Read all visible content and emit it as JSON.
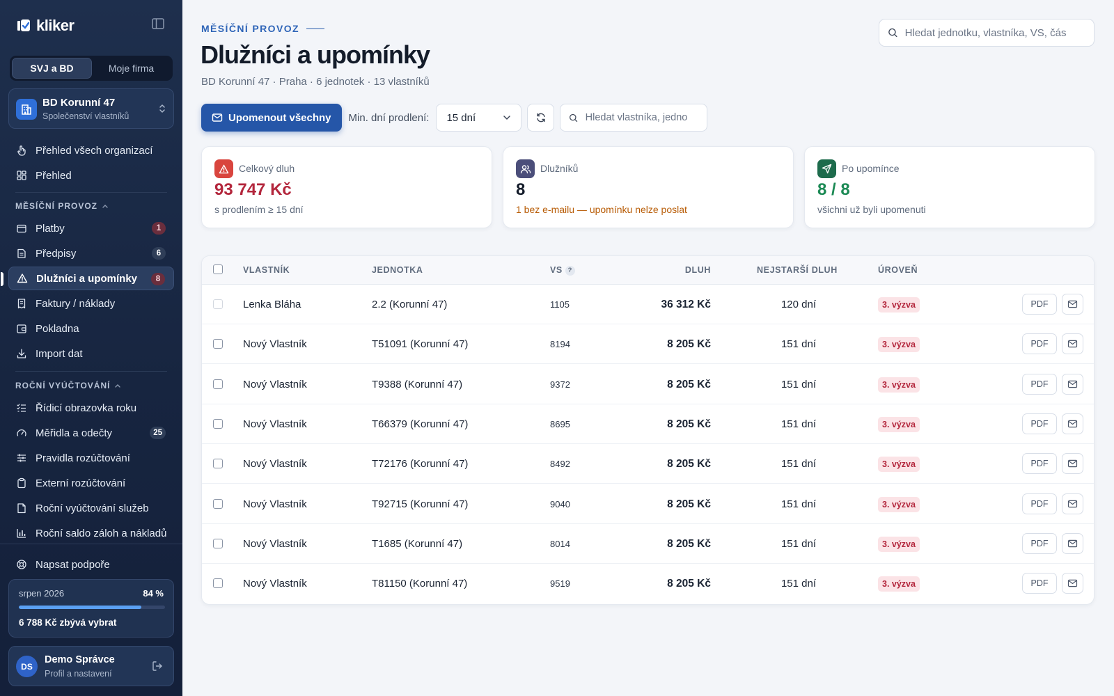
{
  "app": {
    "logo_text": "kliker"
  },
  "sidebar": {
    "segments": [
      {
        "label": "SVJ a BD",
        "active": true
      },
      {
        "label": "Moje firma",
        "active": false
      }
    ],
    "org": {
      "name": "BD Korunní 47",
      "type": "Společenství vlastníků"
    },
    "top_items": [
      {
        "label": "Přehled všech organizací",
        "icon": "hand-pointer-icon"
      },
      {
        "label": "Přehled",
        "icon": "dashboard-icon"
      }
    ],
    "section_monthly": "MĚSÍČNÍ PROVOZ",
    "monthly_items": [
      {
        "label": "Platby",
        "icon": "wallet-icon",
        "badge": "1",
        "badge_color": "#6a2e3d"
      },
      {
        "label": "Předpisy",
        "icon": "list-icon",
        "badge": "6"
      },
      {
        "label": "Dlužníci a upomínky",
        "icon": "warning-icon",
        "badge": "8",
        "active": true,
        "badge_color": "#6a2e3d"
      },
      {
        "label": "Faktury / náklady",
        "icon": "receipt-icon"
      },
      {
        "label": "Pokladna",
        "icon": "cashbox-icon"
      },
      {
        "label": "Import dat",
        "icon": "download-icon"
      }
    ],
    "section_annual": "ROČNÍ VYÚČTOVÁNÍ",
    "annual_items": [
      {
        "label": "Řídicí obrazovka roku",
        "icon": "checklist-icon"
      },
      {
        "label": "Měřidla a odečty",
        "icon": "gauge-icon",
        "badge": "25"
      },
      {
        "label": "Pravidla rozúčtování",
        "icon": "sliders-icon"
      },
      {
        "label": "Externí rozúčtování",
        "icon": "clipboard-icon"
      },
      {
        "label": "Roční vyúčtování služeb",
        "icon": "document-icon"
      },
      {
        "label": "Roční saldo záloh a nákladů",
        "icon": "bar-chart-icon"
      }
    ],
    "support": {
      "label": "Napsat podpoře",
      "icon": "lifebuoy-icon"
    },
    "budget": {
      "month": "srpen 2026",
      "percent_label": "84 %",
      "percent": 84,
      "remaining": "6 788 Kč zbývá vybrat"
    },
    "user": {
      "initials": "DS",
      "name": "Demo Správce",
      "sub": "Profil a nastavení"
    }
  },
  "header": {
    "eyebrow": "MĚSÍČNÍ PROVOZ",
    "title": "Dlužníci a upomínky",
    "subtitle": "BD Korunní 47 · Praha · 6 jednotek · 13 vlastníků",
    "search_placeholder": "Hledat jednotku, vlastníka, VS, čás"
  },
  "toolbar": {
    "remind_all": "Upomenout všechny",
    "min_days_label": "Min. dní prodlení:",
    "min_days_value": "15 dní",
    "search_placeholder": "Hledat vlastníka, jedno"
  },
  "stats": [
    {
      "label": "Celkový dluh",
      "value": "93 747 Kč",
      "note": "s prodlením ≥ 15 dní",
      "icon": "warning-icon",
      "icon_bg": "#d9453e",
      "value_color": "#b3263c",
      "note_color": "#5f6b7d"
    },
    {
      "label": "Dlužníků",
      "value": "8",
      "note": "1 bez e-mailu — upomínku nelze poslat",
      "icon": "users-icon",
      "icon_bg": "#4b4e7a",
      "value_color": "#141c2a",
      "note_color": "#b85c06"
    },
    {
      "label": "Po upomínce",
      "value": "8 / 8",
      "note": "všichni už byli upomenuti",
      "icon": "send-icon",
      "icon_bg": "#1d6b4c",
      "value_color": "#1c8a55",
      "note_color": "#5f6b7d"
    }
  ],
  "table": {
    "columns": {
      "owner": "VLASTNÍK",
      "unit": "JEDNOTKA",
      "vs": "VS",
      "vs_help": "?",
      "debt": "DLUH",
      "oldest": "NEJSTARŠÍ DLUH",
      "level": "ÚROVEŇ"
    },
    "pdf_label": "PDF",
    "rows": [
      {
        "owner": "Lenka Bláha",
        "unit": "2.2 (Korunní 47)",
        "vs": "1105",
        "debt": "36 312 Kč",
        "oldest": "120 dní",
        "level": "3. výzva",
        "disabled": true
      },
      {
        "owner": "Nový Vlastník",
        "unit": "T51091 (Korunní 47)",
        "vs": "8194",
        "debt": "8 205 Kč",
        "oldest": "151 dní",
        "level": "3. výzva"
      },
      {
        "owner": "Nový Vlastník",
        "unit": "T9388 (Korunní 47)",
        "vs": "9372",
        "debt": "8 205 Kč",
        "oldest": "151 dní",
        "level": "3. výzva"
      },
      {
        "owner": "Nový Vlastník",
        "unit": "T66379 (Korunní 47)",
        "vs": "8695",
        "debt": "8 205 Kč",
        "oldest": "151 dní",
        "level": "3. výzva"
      },
      {
        "owner": "Nový Vlastník",
        "unit": "T72176 (Korunní 47)",
        "vs": "8492",
        "debt": "8 205 Kč",
        "oldest": "151 dní",
        "level": "3. výzva"
      },
      {
        "owner": "Nový Vlastník",
        "unit": "T92715 (Korunní 47)",
        "vs": "9040",
        "debt": "8 205 Kč",
        "oldest": "151 dní",
        "level": "3. výzva"
      },
      {
        "owner": "Nový Vlastník",
        "unit": "T1685 (Korunní 47)",
        "vs": "8014",
        "debt": "8 205 Kč",
        "oldest": "151 dní",
        "level": "3. výzva"
      },
      {
        "owner": "Nový Vlastník",
        "unit": "T81150 (Korunní 47)",
        "vs": "9519",
        "debt": "8 205 Kč",
        "oldest": "151 dní",
        "level": "3. výzva"
      }
    ]
  }
}
